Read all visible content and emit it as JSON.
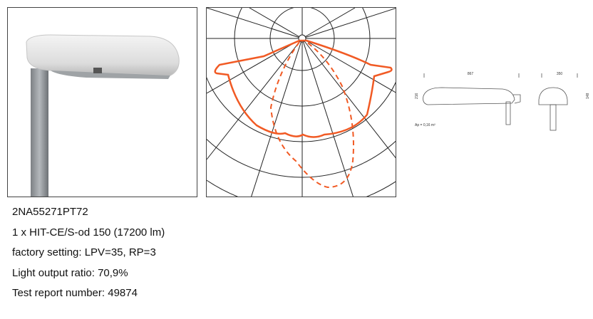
{
  "product": {
    "code": "2NA55271PT72",
    "lamp": "1 x HIT-CE/S-od 150 (17200 lm)",
    "setting": "factory setting: LPV=35, RP=3",
    "lor": "Light output ratio: 70,9%",
    "report": "Test report number: 49874"
  },
  "drawing": {
    "length": "867",
    "height": "216",
    "width": "350",
    "depth": "148",
    "area": "Ap = 0,16 m²"
  }
}
